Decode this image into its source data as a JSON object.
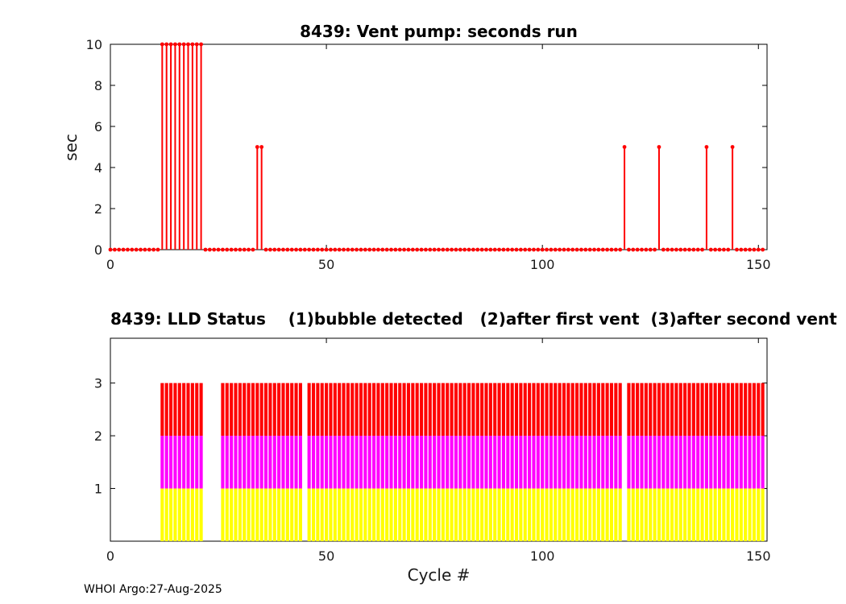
{
  "figure": {
    "footer": "WHOI Argo:27-Aug-2025"
  },
  "chart_data": [
    {
      "type": "stem",
      "title": "8439: Vent pump: seconds run",
      "ylabel": "sec",
      "xlim": [
        0,
        152
      ],
      "ylim": [
        0,
        10
      ],
      "xticks": [
        0,
        50,
        100,
        150
      ],
      "yticks": [
        0,
        2,
        4,
        6,
        8,
        10
      ],
      "n_cycles": 152,
      "default_value": 0,
      "color": "#ff0000",
      "events": [
        {
          "from": 12,
          "to": 21,
          "value": 10
        },
        {
          "from": 34,
          "to": 35,
          "value": 5
        },
        {
          "from": 119,
          "to": 119,
          "value": 5
        },
        {
          "from": 127,
          "to": 127,
          "value": 5
        },
        {
          "from": 138,
          "to": 138,
          "value": 5
        },
        {
          "from": 144,
          "to": 144,
          "value": 5
        }
      ]
    },
    {
      "type": "stacked-bar",
      "title": "8439: LLD Status    (1)bubble detected   (2)after first vent  (3)after second vent",
      "xlabel": "Cycle #",
      "xlim": [
        0,
        152
      ],
      "ylim": [
        0,
        3.85
      ],
      "xticks": [
        0,
        50,
        100,
        150
      ],
      "yticks": [
        1,
        2,
        3
      ],
      "segments": [
        {
          "label": "(1)bubble detected",
          "color": "#ffff00",
          "from": 0,
          "to": 1
        },
        {
          "label": "(2)after first vent",
          "color": "#ff00ff",
          "from": 1,
          "to": 2
        },
        {
          "label": "(3)after second vent",
          "color": "#ff0000",
          "from": 2,
          "to": 3
        }
      ],
      "bar_cycle_ranges": [
        [
          12,
          21
        ],
        [
          26,
          44
        ],
        [
          46,
          118
        ],
        [
          120,
          151
        ]
      ]
    }
  ]
}
